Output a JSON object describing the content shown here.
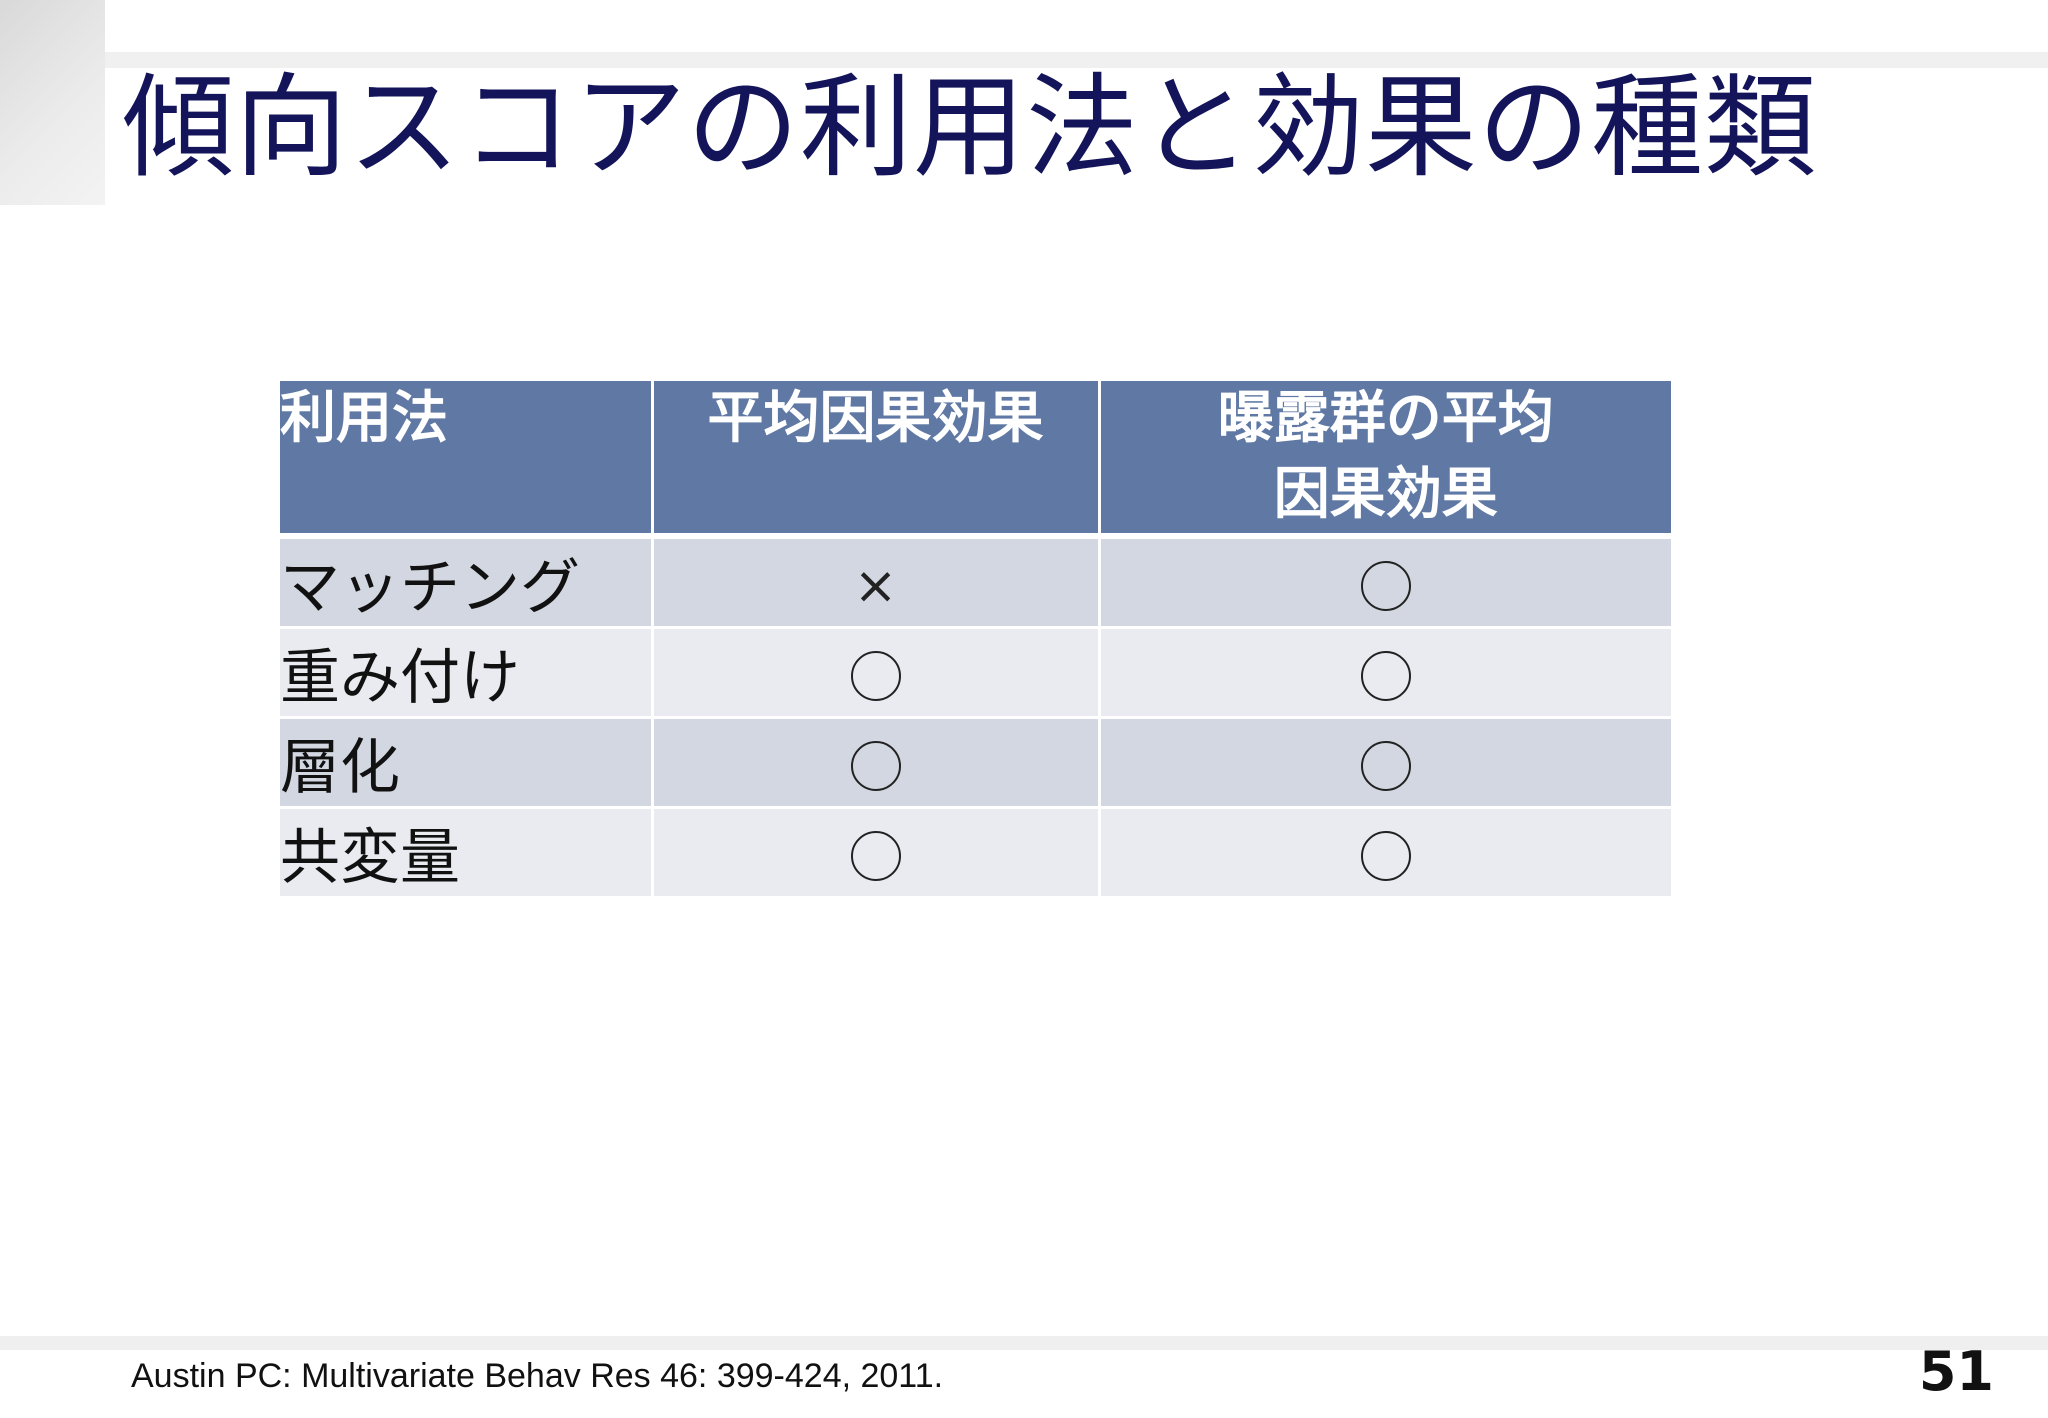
{
  "slide": {
    "title": "傾向スコアの利用法と効果の種類",
    "page_number": "51",
    "footnote": "Austin PC: Multivariate Behav Res 46: 399-424, 2011."
  },
  "table": {
    "headers": [
      "利用法",
      "平均因果効果",
      "曝露群の平均\n因果効果"
    ],
    "rows": [
      {
        "method": "マッチング",
        "ate": "×",
        "att": "○"
      },
      {
        "method": "重み付け",
        "ate": "○",
        "att": "○"
      },
      {
        "method": "層化",
        "ate": "○",
        "att": "○"
      },
      {
        "method": "共変量",
        "ate": "○",
        "att": "○"
      }
    ]
  },
  "colors": {
    "title": "#14145a",
    "header_bg": "#5f78a4",
    "row_odd": "#d2d7e1",
    "row_even": "#e9ebf0"
  }
}
